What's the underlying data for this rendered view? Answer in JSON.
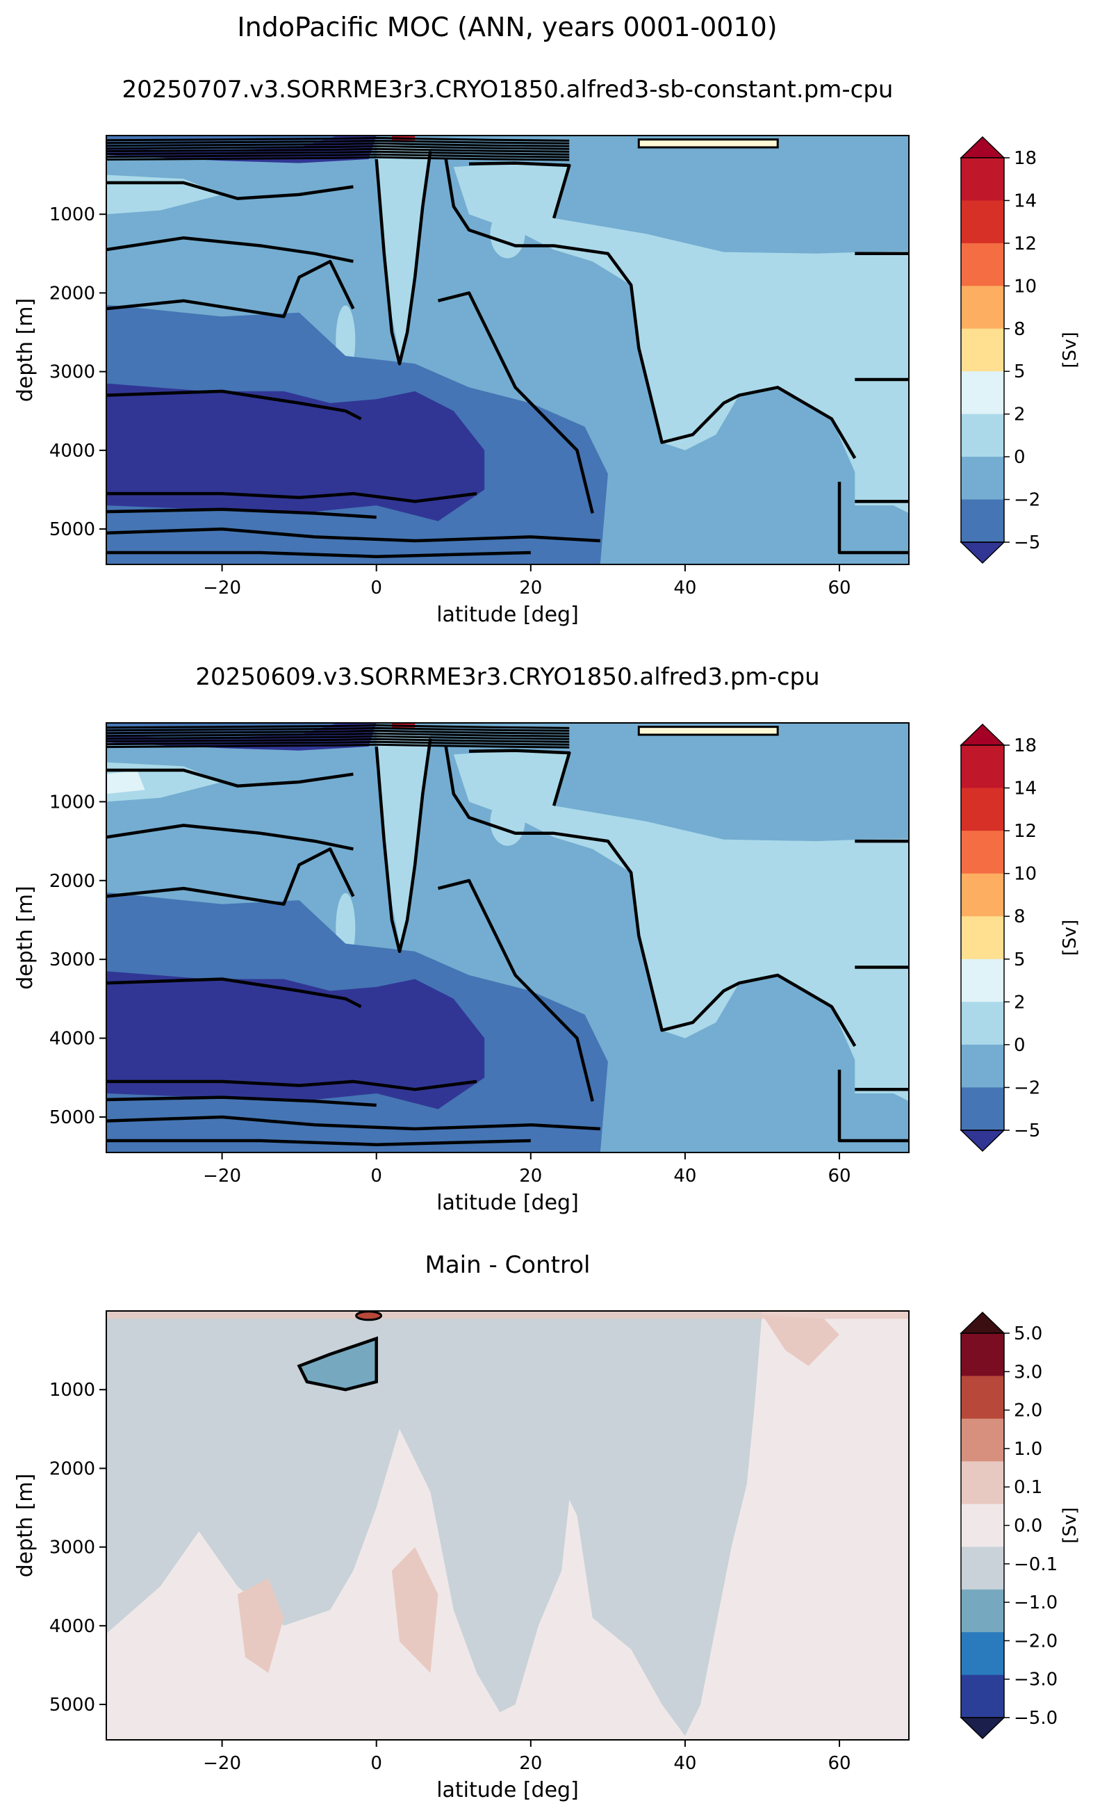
{
  "figure": {
    "suptitle": "IndoPacific MOC (ANN, years 0001-0010)"
  },
  "chart_data": [
    {
      "type": "heatmap",
      "title": "20250707.v3.SORRME3r3.CRYO1850.alfred3-sb-constant.pm-cpu",
      "xlabel": "latitude [deg]",
      "ylabel": "depth [m]",
      "xlim": [
        -35,
        69
      ],
      "ylim": [
        5450,
        0
      ],
      "xticks": [
        "−20",
        "0",
        "20",
        "40",
        "60"
      ],
      "yticks": [
        "1000",
        "2000",
        "3000",
        "4000",
        "5000"
      ],
      "colorbar": {
        "label": "[Sv]",
        "levels": [
          "18",
          "14",
          "12",
          "10",
          "8",
          "5",
          "2",
          "0",
          "−2",
          "−5"
        ],
        "colors": [
          "#a50026",
          "#c1172b",
          "#d73027",
          "#f46d43",
          "#fdae61",
          "#fee090",
          "#e0f3f8",
          "#abd9e9",
          "#74add1",
          "#4575b4",
          "#313695"
        ]
      },
      "grid": false
    },
    {
      "type": "heatmap",
      "title": "20250609.v3.SORRME3r3.CRYO1850.alfred3.pm-cpu",
      "xlabel": "latitude [deg]",
      "ylabel": "depth [m]",
      "xlim": [
        -35,
        69
      ],
      "ylim": [
        5450,
        0
      ],
      "xticks": [
        "−20",
        "0",
        "20",
        "40",
        "60"
      ],
      "yticks": [
        "1000",
        "2000",
        "3000",
        "4000",
        "5000"
      ],
      "colorbar": {
        "label": "[Sv]",
        "levels": [
          "18",
          "14",
          "12",
          "10",
          "8",
          "5",
          "2",
          "0",
          "−2",
          "−5"
        ],
        "colors": [
          "#a50026",
          "#c1172b",
          "#d73027",
          "#f46d43",
          "#fdae61",
          "#fee090",
          "#e0f3f8",
          "#abd9e9",
          "#74add1",
          "#4575b4",
          "#313695"
        ]
      },
      "grid": false
    },
    {
      "type": "heatmap",
      "title": "Main - Control",
      "xlabel": "latitude [deg]",
      "ylabel": "depth [m]",
      "xlim": [
        -35,
        69
      ],
      "ylim": [
        5450,
        0
      ],
      "xticks": [
        "−20",
        "0",
        "20",
        "40",
        "60"
      ],
      "yticks": [
        "1000",
        "2000",
        "3000",
        "4000",
        "5000"
      ],
      "colorbar": {
        "label": "[Sv]",
        "levels": [
          "5.0",
          "3.0",
          "2.0",
          "1.0",
          "0.1",
          "0.0",
          "−0.1",
          "−1.0",
          "−2.0",
          "−3.0",
          "−5.0"
        ],
        "colors": [
          "#3b0f12",
          "#7a0d22",
          "#b7483a",
          "#d6907d",
          "#e8c9c1",
          "#f0e8e8",
          "#c9d2d8",
          "#76a9bf",
          "#2a7bbd",
          "#2b3f99",
          "#1b1f4b"
        ]
      },
      "grid": false
    }
  ]
}
